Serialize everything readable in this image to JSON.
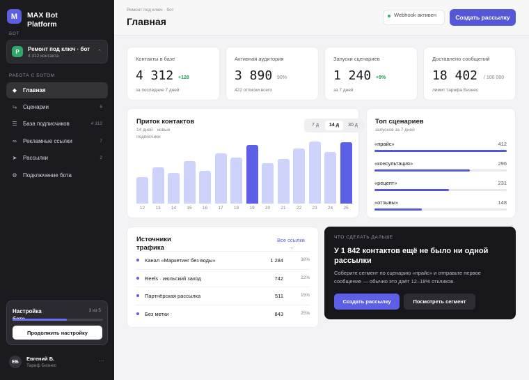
{
  "sidebar": {
    "logo_letter": "M",
    "brand": "MAX Bot Platform",
    "bot_section": "Бот",
    "bot": {
      "avatar": "Р",
      "name": "Ремонт под ключ · бот",
      "sub": "4 312 контакта",
      "chevron_icon": "chevron-up-down-icon"
    },
    "work_section": "Работа с ботом",
    "nav": [
      {
        "label": "Главная",
        "count": "",
        "icon": "diamond-icon",
        "active": true
      },
      {
        "label": "Сценарии",
        "count": "6",
        "icon": "flow-icon"
      },
      {
        "label": "База подписчиков",
        "count": "4 312",
        "icon": "list-icon"
      },
      {
        "label": "Рекламные ссылки",
        "count": "7",
        "icon": "link-icon"
      },
      {
        "label": "Рассылки",
        "count": "2",
        "icon": "send-icon"
      },
      {
        "label": "Подключение бота",
        "count": "",
        "icon": "gear-icon"
      }
    ],
    "setup": {
      "title": "Настройка бота",
      "count": "3 из 5",
      "progress": 0.6,
      "button": "Продолжить настройку"
    },
    "user": {
      "initials": "ЕБ",
      "name": "Евгений Б.",
      "plan": "Тариф Бизнес",
      "more": "···"
    }
  },
  "header": {
    "breadcrumb": "Ремонт под ключ · бот",
    "title": "Главная",
    "webhook": "Webhook активен",
    "create_button": "Создать рассылку"
  },
  "kpis": [
    {
      "label": "Контакты в базе",
      "value": "4 312",
      "delta": "+128",
      "sub": "за последние 7 дней"
    },
    {
      "label": "Активная аудитория",
      "value": "3 890",
      "delta": "90%",
      "sub": "422 отписки всего"
    },
    {
      "label": "Запуски сценариев",
      "value": "1 240",
      "delta": "+9%",
      "sub": "за 7 дней"
    },
    {
      "label": "Доставлено сообщений",
      "value": "18 402",
      "delta": "/ 100 000",
      "sub": "лимит тарифа Бизнес"
    }
  ],
  "inflow": {
    "title": "Приток контактов",
    "subtitle": "14 дней · новые подписчики",
    "ranges": [
      "7 д",
      "14 д",
      "30 д"
    ],
    "active_range": "14 д"
  },
  "chart_data": {
    "type": "bar",
    "categories": [
      "12",
      "13",
      "14",
      "15",
      "16",
      "17",
      "18",
      "19",
      "20",
      "21",
      "22",
      "23",
      "24",
      "25"
    ],
    "values": [
      38,
      52,
      44,
      61,
      47,
      72,
      66,
      84,
      58,
      64,
      79,
      89,
      74,
      88
    ],
    "highlighted": [
      "19",
      "25"
    ],
    "colors": {
      "bar": "#cdd3fb",
      "highlight": "#5c60e6"
    },
    "ylim": [
      0,
      90
    ],
    "grid": false
  },
  "top_scenarios": {
    "title": "Топ сценариев",
    "subtitle": "запусков за 7 дней",
    "items": [
      {
        "name": "«прайс»",
        "value": 412
      },
      {
        "name": "«консультация»",
        "value": 296
      },
      {
        "name": "«рецепт»",
        "value": 231
      },
      {
        "name": "«отзывы»",
        "value": 148
      }
    ]
  },
  "sources": {
    "title": "Источники трафика",
    "all_link": "Все ссылки →",
    "rows": [
      {
        "name": "Канал «Маркетинг без воды»",
        "count": "1 284",
        "pct": "38%"
      },
      {
        "name": "Reels · июльский заход",
        "count": "742",
        "pct": "22%"
      },
      {
        "name": "Партнёрская рассылка",
        "count": "511",
        "pct": "15%"
      },
      {
        "name": "Без метки",
        "count": "843",
        "pct": "25%"
      }
    ]
  },
  "next": {
    "label": "Что сделать дальше",
    "title": "У 1 842 контактов ещё не было ни одной рассылки",
    "text": "Соберите сегмент по сценарию «прайс» и отправьте первое сообщение — обычно это даёт 12–18% откликов.",
    "primary": "Создать рассылку",
    "secondary": "Посмотреть сегмент"
  }
}
